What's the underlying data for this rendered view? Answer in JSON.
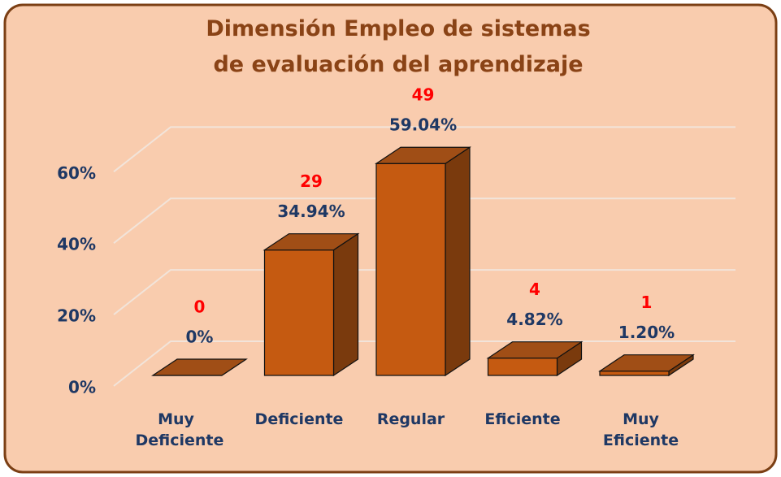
{
  "chart_data": {
    "type": "bar3d",
    "title": "Dimensión Empleo de sistemas de evaluación del aprendizaje",
    "categories": [
      "Muy Deficiente",
      "Deficiente",
      "Regular",
      "Eficiente",
      "Muy Eficiente"
    ],
    "values": [
      0,
      34.94,
      59.04,
      4.82,
      1.2
    ],
    "value_labels": [
      "0%",
      "34.94%",
      "59.04%",
      "4.82%",
      "1.20%"
    ],
    "counts": [
      0,
      29,
      49,
      4,
      1
    ],
    "color": "#c55a11",
    "ylim": [
      0,
      60
    ],
    "yticks": [
      {
        "value": 0,
        "label": "0%"
      },
      {
        "value": 20,
        "label": "20%"
      },
      {
        "value": 40,
        "label": "40%"
      },
      {
        "value": 60,
        "label": "60%"
      }
    ],
    "grid": true
  }
}
